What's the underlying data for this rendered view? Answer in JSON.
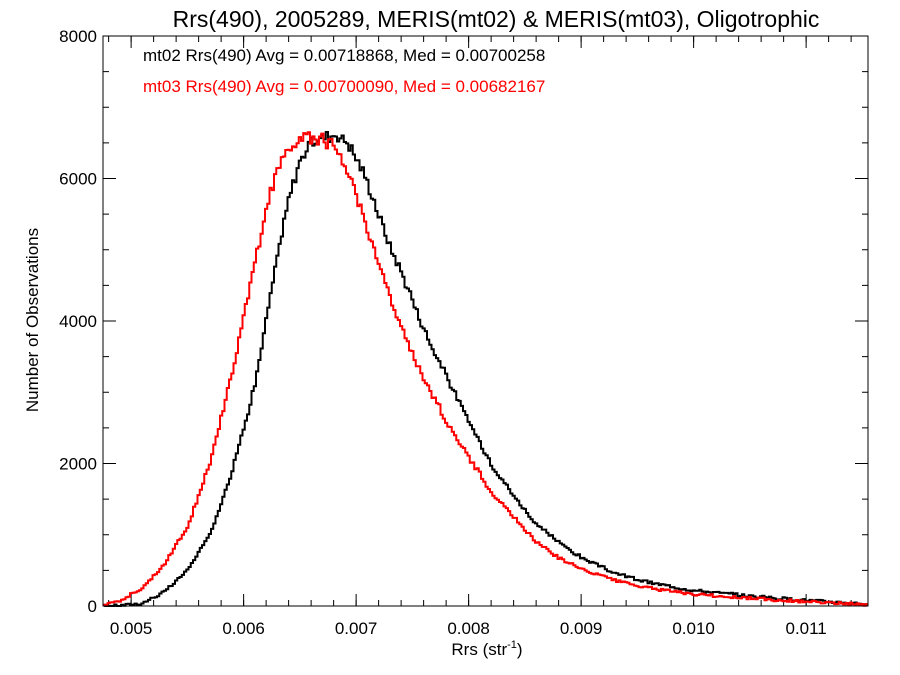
{
  "chart_data": {
    "type": "line",
    "title": "Rrs(490), 2005289, MERIS(mt02) & MERIS(mt03), Oligotrophic",
    "xlabel_main": "Rrs (str",
    "xlabel_sup": "-1",
    "xlabel_close": ")",
    "ylabel": "Number of Observations",
    "xlim": [
      0.00475,
      0.01155
    ],
    "ylim": [
      0,
      8000
    ],
    "x_ticks": [
      0.005,
      0.006,
      0.007,
      0.008,
      0.009,
      0.01,
      0.011
    ],
    "x_tick_labels": [
      "0.005",
      "0.006",
      "0.007",
      "0.008",
      "0.009",
      "0.010",
      "0.011"
    ],
    "y_ticks": [
      0,
      2000,
      4000,
      6000,
      8000
    ],
    "y_tick_labels": [
      "0",
      "2000",
      "4000",
      "6000",
      "8000"
    ],
    "grid": false,
    "legend_position": "top-left",
    "series": [
      {
        "name": "mt02 Rrs(490) Avg = 0.00718868, Med = 0.00700258",
        "color": "#000000",
        "x": [
          0.00475,
          0.0049,
          0.0051,
          0.0053,
          0.0055,
          0.0057,
          0.0059,
          0.0061,
          0.0063,
          0.0064,
          0.0065,
          0.0066,
          0.0067,
          0.0068,
          0.0069,
          0.007,
          0.0071,
          0.0072,
          0.0073,
          0.0074,
          0.0075,
          0.0076,
          0.0077,
          0.0078,
          0.0079,
          0.008,
          0.0082,
          0.0084,
          0.0086,
          0.0088,
          0.009,
          0.0093,
          0.0096,
          0.01,
          0.0105,
          0.011,
          0.01155
        ],
        "values": [
          0,
          5,
          40,
          200,
          500,
          1000,
          1900,
          3100,
          4900,
          5700,
          6250,
          6500,
          6580,
          6620,
          6550,
          6300,
          5950,
          5500,
          5050,
          4700,
          4300,
          3900,
          3550,
          3250,
          2900,
          2600,
          2000,
          1550,
          1150,
          900,
          680,
          460,
          330,
          220,
          140,
          80,
          30
        ]
      },
      {
        "name": "mt03 Rrs(490) Avg = 0.00700090, Med = 0.00682167",
        "color": "#ff0000",
        "x": [
          0.00475,
          0.0049,
          0.0051,
          0.0053,
          0.0055,
          0.0057,
          0.0059,
          0.0061,
          0.0062,
          0.0063,
          0.0064,
          0.0065,
          0.0066,
          0.0067,
          0.0068,
          0.0069,
          0.007,
          0.0071,
          0.0072,
          0.0073,
          0.0074,
          0.0075,
          0.0076,
          0.0077,
          0.0078,
          0.0079,
          0.008,
          0.0082,
          0.0084,
          0.0086,
          0.0088,
          0.009,
          0.0093,
          0.0096,
          0.01,
          0.0105,
          0.011,
          0.01155
        ],
        "values": [
          20,
          80,
          250,
          600,
          1100,
          2000,
          3300,
          4800,
          5600,
          6100,
          6450,
          6550,
          6580,
          6560,
          6450,
          6200,
          5800,
          5300,
          4800,
          4350,
          3900,
          3550,
          3200,
          2900,
          2600,
          2350,
          2100,
          1600,
          1250,
          900,
          680,
          520,
          360,
          250,
          160,
          110,
          60,
          20
        ]
      }
    ]
  }
}
